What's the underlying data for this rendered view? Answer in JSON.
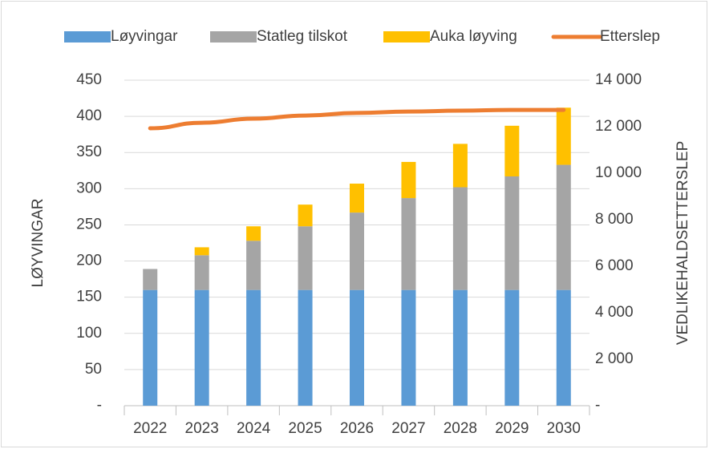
{
  "chart_data": {
    "type": "bar",
    "stacked": true,
    "categories": [
      "2022",
      "2023",
      "2024",
      "2025",
      "2026",
      "2027",
      "2028",
      "2029",
      "2030"
    ],
    "series": [
      {
        "name": "Løyvingar",
        "color": "#5b9bd5",
        "type": "bar",
        "values": [
          160,
          160,
          160,
          160,
          160,
          160,
          160,
          160,
          160
        ]
      },
      {
        "name": "Statleg tilskot",
        "color": "#a5a5a5",
        "type": "bar",
        "values": [
          29,
          48,
          68,
          88,
          107,
          127,
          142,
          157,
          173
        ]
      },
      {
        "name": "Auka løyving",
        "color": "#ffc000",
        "type": "bar",
        "values": [
          0,
          11,
          20,
          30,
          40,
          50,
          60,
          70,
          79
        ]
      },
      {
        "name": "Etterslep",
        "color": "#ed7d31",
        "type": "line",
        "axis": "y2",
        "values": [
          11930,
          12170,
          12345,
          12480,
          12590,
          12650,
          12690,
          12720,
          12720
        ]
      }
    ],
    "ylabel": "LØYVINGAR",
    "y2label": "VEDLIKEHALDSETTERSLEP",
    "ylim": [
      0,
      450
    ],
    "yticks": [
      {
        "value": 0,
        "label": "-"
      },
      50,
      100,
      150,
      200,
      250,
      300,
      350,
      400,
      450
    ],
    "y2lim": [
      0,
      14000
    ],
    "y2ticks": [
      {
        "value": 0,
        "label": "-"
      },
      {
        "value": 2000,
        "label": "2 000"
      },
      {
        "value": 4000,
        "label": "4 000"
      },
      {
        "value": 6000,
        "label": "6 000"
      },
      {
        "value": 8000,
        "label": "8 000"
      },
      {
        "value": 10000,
        "label": "10 000"
      },
      {
        "value": 12000,
        "label": "12 000"
      },
      {
        "value": 14000,
        "label": "14 000"
      }
    ],
    "grid": true,
    "legend": "top"
  }
}
